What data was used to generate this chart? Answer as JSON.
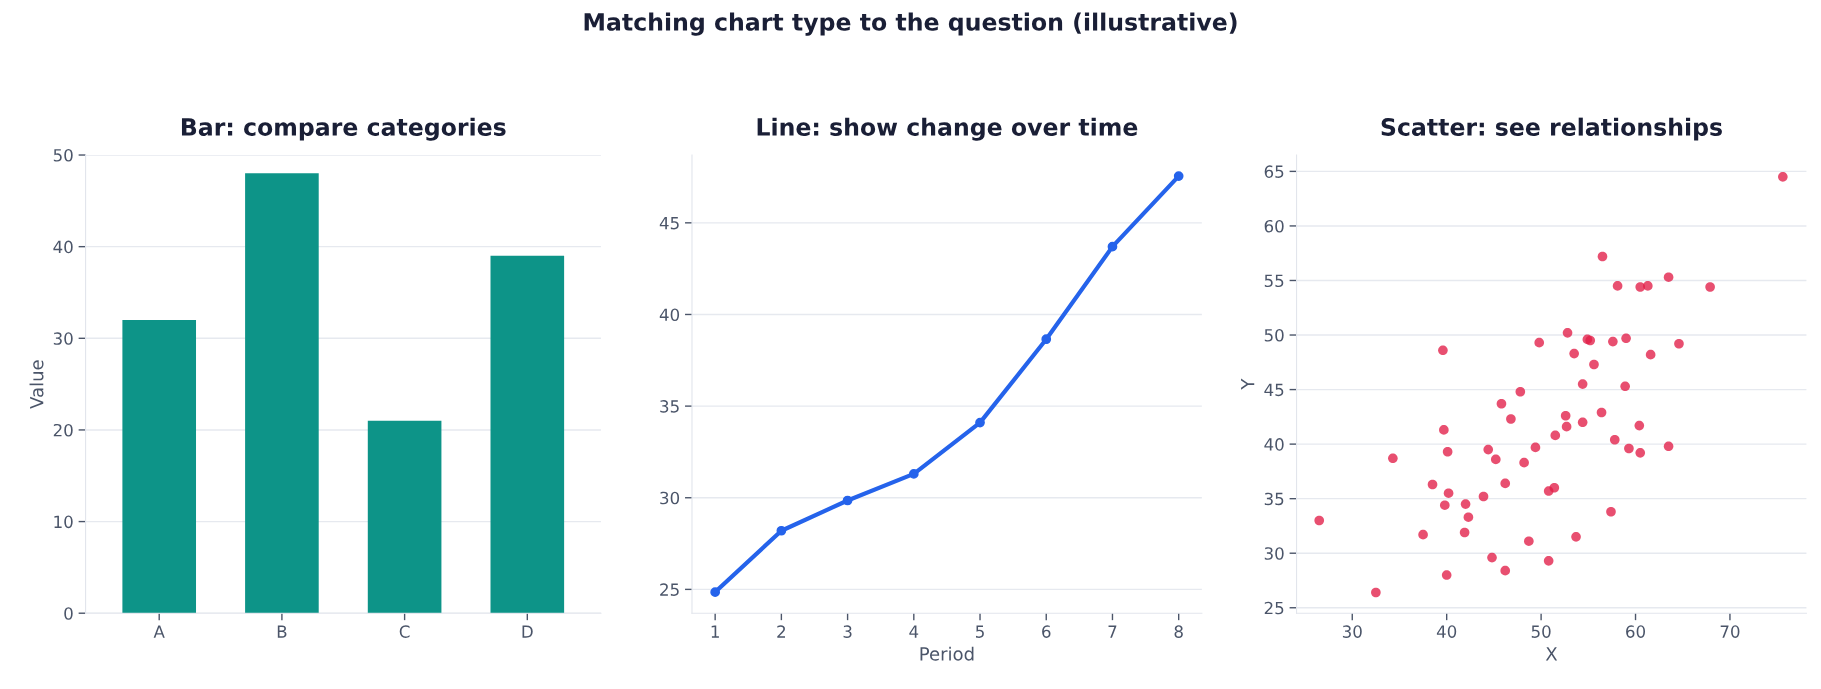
{
  "chart_data": [
    {
      "type": "bar",
      "annotations": [
        "Matching chart type to the question (illustrative)"
      ],
      "title": "Bar: compare categories",
      "ylabel": "Value",
      "categories": [
        "A",
        "B",
        "C",
        "D"
      ],
      "values": [
        32,
        48,
        21,
        39
      ],
      "color": "#0d9488",
      "ylim": [
        0,
        50
      ],
      "yticks": [
        0,
        10,
        20,
        30,
        40,
        50
      ],
      "grid": "y"
    },
    {
      "type": "line",
      "title": "Line: show change over time",
      "xlabel": "Period",
      "x": [
        1,
        2,
        3,
        4,
        5,
        6,
        7,
        8
      ],
      "values": [
        24.85,
        28.2,
        29.85,
        31.3,
        34.1,
        38.65,
        43.7,
        47.55
      ],
      "color": "#2563eb",
      "marker": "circle",
      "line_style": "solid",
      "xlim": [
        0.65,
        8.35
      ],
      "ylim": [
        23.7,
        48.7
      ],
      "xticks": [
        1,
        2,
        3,
        4,
        5,
        6,
        7,
        8
      ],
      "yticks": [
        25,
        30,
        35,
        40,
        45
      ],
      "grid": "y"
    },
    {
      "type": "scatter",
      "title": "Scatter: see relationships",
      "xlabel": "X",
      "ylabel": "Y",
      "color": "#e11d48",
      "marker": "circle",
      "grid": "y",
      "x": [
        26.5,
        32.5,
        34.3,
        39.6,
        39.7,
        40.1,
        38.5,
        40.2,
        39.8,
        37.5,
        40.0,
        42.0,
        42.3,
        41.9,
        43.9,
        44.4,
        45.2,
        45.8,
        46.8,
        46.2,
        44.8,
        46.2,
        47.8,
        48.2,
        48.7,
        49.4,
        49.8,
        50.8,
        51.4,
        50.8,
        51.5,
        52.6,
        52.7,
        52.8,
        53.5,
        53.7,
        54.4,
        54.4,
        54.9,
        55.2,
        55.6,
        56.4,
        56.5,
        57.4,
        57.6,
        57.8,
        58.1,
        58.9,
        59.0,
        59.3,
        60.4,
        60.5,
        60.5,
        61.3,
        61.6,
        63.5,
        63.5,
        64.6,
        67.9,
        75.6
      ],
      "values": [
        33.0,
        26.4,
        38.7,
        48.6,
        41.3,
        39.3,
        36.3,
        35.5,
        34.4,
        31.7,
        28.0,
        34.5,
        33.3,
        31.9,
        35.2,
        39.5,
        38.6,
        43.7,
        42.3,
        36.4,
        29.6,
        28.4,
        44.8,
        38.3,
        31.1,
        39.7,
        49.3,
        35.7,
        36.0,
        29.3,
        40.8,
        42.6,
        41.6,
        50.2,
        48.3,
        31.5,
        45.5,
        42.0,
        49.6,
        49.5,
        47.3,
        42.9,
        57.2,
        33.8,
        49.4,
        40.4,
        54.5,
        45.3,
        49.7,
        39.6,
        41.7,
        39.2,
        54.4,
        54.5,
        48.2,
        55.3,
        39.8,
        49.2,
        54.4,
        64.5
      ],
      "xlim": [
        24.1,
        78.1
      ],
      "ylim": [
        24.5,
        66.5
      ],
      "xticks": [
        30,
        40,
        50,
        60,
        70
      ],
      "yticks": [
        25,
        30,
        35,
        40,
        45,
        50,
        55,
        60,
        65
      ]
    }
  ]
}
